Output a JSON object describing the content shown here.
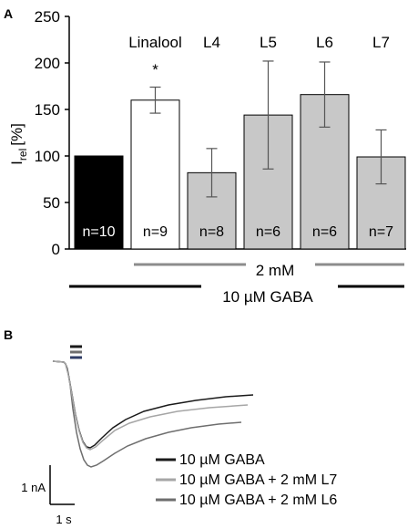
{
  "chart_data": [
    {
      "panel": "A",
      "type": "bar",
      "ylabel_main": "I",
      "ylabel_sub": "rel",
      "ylabel_unit": "[%]",
      "ylim": [
        0,
        250
      ],
      "yticks": [
        "0",
        "50",
        "100",
        "150",
        "200",
        "250"
      ],
      "categories": [
        "",
        "Linalool",
        "L4",
        "L5",
        "L6",
        "L7"
      ],
      "values": [
        100,
        160,
        82,
        144,
        166,
        99
      ],
      "errors": [
        0,
        14,
        26,
        58,
        35,
        29
      ],
      "n_labels": [
        "n=10",
        "n=9",
        "n=8",
        "n=6",
        "n=6",
        "n=7"
      ],
      "significance": [
        "",
        "*",
        "",
        "",
        "",
        ""
      ],
      "fill_colors": [
        "#000000",
        "#ffffff",
        "#c8c8c8",
        "#c8c8c8",
        "#c8c8c8",
        "#c8c8c8"
      ],
      "n_label_colors": [
        "#ffffff",
        "#000000",
        "#000000",
        "#000000",
        "#000000",
        "#000000"
      ],
      "bracket_2mM": "2 mM",
      "bracket_gaba": "10 µM GABA"
    },
    {
      "panel": "B",
      "type": "line",
      "scale_y": "1 nA",
      "scale_x": "1 s",
      "series": [
        {
          "name": "10 µM GABA",
          "color": "#1a1a1a"
        },
        {
          "name": "10 µM GABA + 2 mM L7",
          "color": "#a6a6a6"
        },
        {
          "name": "10 µM GABA + 2 mM L6",
          "color": "#6e6e6e"
        }
      ]
    }
  ]
}
